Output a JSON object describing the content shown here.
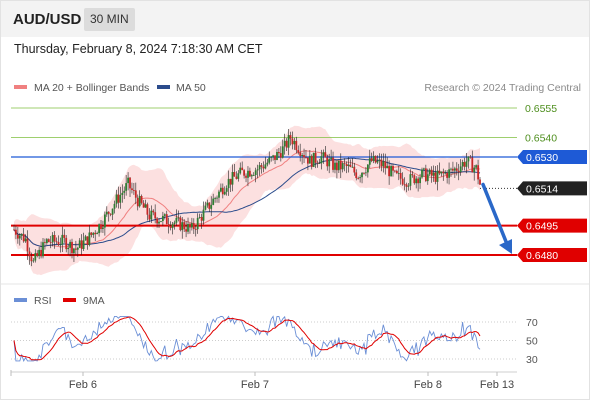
{
  "header": {
    "symbol": "AUD/USD",
    "timeframe": "30 MIN"
  },
  "datetime": "Thursday, February 8, 2024 7:18:30 AM CET",
  "legend": [
    {
      "name": "MA 20 + Bollinger Bands",
      "color": "#f08080"
    },
    {
      "name": "MA 50",
      "color": "#2b4c8c"
    }
  ],
  "copyright": "Research © 2024 Trading Central",
  "rsi_legend": [
    {
      "name": "RSI",
      "color": "#6b8fd6"
    },
    {
      "name": "9MA",
      "color": "#e00000"
    }
  ],
  "chart_data": {
    "type": "candlestick",
    "price_ylim": [
      0.647,
      0.656
    ],
    "levels": [
      {
        "value": 0.6555,
        "label": "0.6555",
        "color": "#7fbf3f",
        "style": "thin"
      },
      {
        "value": 0.654,
        "label": "0.6540",
        "color": "#7fbf3f",
        "style": "thin"
      },
      {
        "value": 0.653,
        "label": "0.6530",
        "color": "#1e5ad6",
        "style": "line",
        "badge": true
      },
      {
        "value": 0.6495,
        "label": "0.6495",
        "color": "#e00000",
        "style": "thick",
        "badge": true
      },
      {
        "value": 0.648,
        "label": "0.6480",
        "color": "#e00000",
        "style": "thick",
        "badge": true
      }
    ],
    "last_price": {
      "value": 0.6514,
      "label": "0.6514"
    },
    "forecast_arrow": {
      "from": 0.6516,
      "to": 0.6481
    },
    "x_ticks": [
      "Feb 6",
      "Feb 7",
      "Feb 8",
      "Feb 13"
    ],
    "rsi_ylim": [
      20,
      80
    ],
    "rsi_ticks": [
      "70",
      "50",
      "30"
    ],
    "rsi_levels": [
      70,
      50,
      30
    ]
  }
}
